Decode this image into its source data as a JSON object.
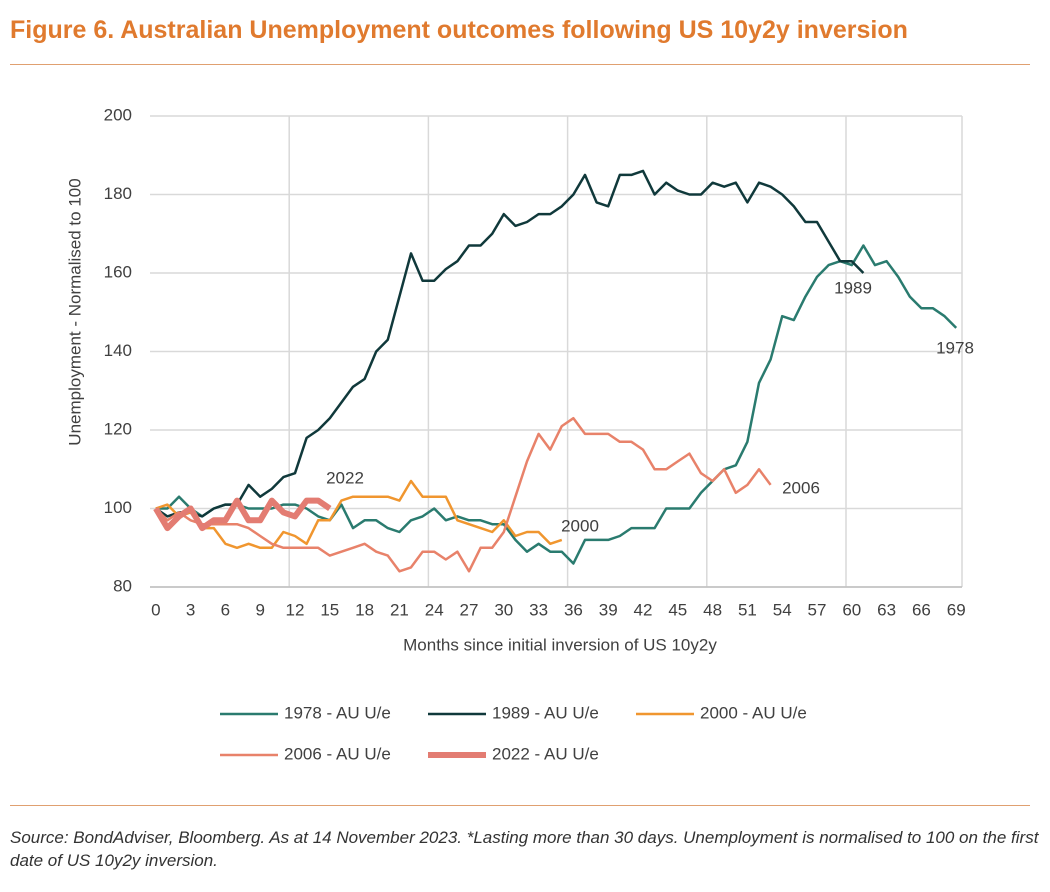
{
  "title": "Figure 6. Australian Unemployment outcomes following US 10y2y inversion",
  "source": "Source: BondAdviser, Bloomberg. As at 14 November 2023. *Lasting more than 30 days. Unemployment is normalised to 100 on the first date of US 10y2y inversion.",
  "chart_data": {
    "type": "line",
    "x_label": "Months since initial inversion of US 10y2y",
    "y_label": "Unemployment - Normalised to 100",
    "categories": [
      "0",
      null,
      null,
      "3",
      null,
      null,
      "6",
      null,
      null,
      "9",
      null,
      null,
      "12",
      null,
      null,
      "15",
      null,
      null,
      "18",
      null,
      null,
      "21",
      null,
      null,
      "24",
      null,
      null,
      "27",
      null,
      null,
      "30",
      null,
      null,
      "33",
      null,
      null,
      "36",
      null,
      null,
      "39",
      null,
      null,
      "42",
      null,
      null,
      "45",
      null,
      null,
      "48",
      null,
      null,
      "51",
      null,
      null,
      "54",
      null,
      null,
      "57",
      null,
      null,
      "60",
      null,
      null,
      "63",
      null,
      null,
      "66",
      null,
      null,
      "69"
    ],
    "ylim": [
      80,
      200
    ],
    "yticks": [
      80,
      100,
      120,
      140,
      160,
      180,
      200
    ],
    "grid": true,
    "series": [
      {
        "name": "1978 - AU U/e",
        "color": "#2a7b6f",
        "width": 2.5,
        "values": [
          100,
          100,
          103,
          100,
          98,
          100,
          101,
          101,
          100,
          100,
          100,
          101,
          101,
          100,
          98,
          97,
          101,
          95,
          97,
          97,
          95,
          94,
          97,
          98,
          100,
          97,
          98,
          97,
          97,
          96,
          96,
          92,
          89,
          91,
          89,
          89,
          86,
          92,
          92,
          92,
          93,
          95,
          95,
          95,
          100,
          100,
          100,
          104,
          107,
          110,
          111,
          117,
          132,
          138,
          149,
          148,
          154,
          159,
          162,
          163,
          162,
          167,
          162,
          163,
          159,
          154,
          151,
          151,
          149,
          146
        ]
      },
      {
        "name": "1989 - AU U/e",
        "color": "#10393b",
        "width": 2.5,
        "values": [
          100,
          98,
          99,
          99,
          98,
          100,
          101,
          101,
          106,
          103,
          105,
          108,
          109,
          118,
          120,
          123,
          127,
          131,
          133,
          140,
          143,
          154,
          165,
          158,
          158,
          161,
          163,
          167,
          167,
          170,
          175,
          172,
          173,
          175,
          175,
          177,
          180,
          185,
          178,
          177,
          185,
          185,
          186,
          180,
          183,
          181,
          180,
          180,
          183,
          182,
          183,
          178,
          183,
          182,
          180,
          177,
          173,
          173,
          168,
          163,
          163,
          160,
          null,
          null,
          null,
          null,
          null,
          null,
          null,
          null
        ]
      },
      {
        "name": "2000 - AU U/e",
        "color": "#f0962f",
        "width": 2.5,
        "values": [
          100,
          101,
          98,
          99,
          95,
          95,
          91,
          90,
          91,
          90,
          90,
          94,
          93,
          91,
          97,
          97,
          102,
          103,
          103,
          103,
          103,
          102,
          107,
          103,
          103,
          103,
          97,
          96,
          95,
          94,
          97,
          93,
          94,
          94,
          91,
          92,
          null,
          null,
          null,
          null,
          null,
          null,
          null,
          null,
          null,
          null,
          null,
          null,
          null,
          null,
          null,
          null,
          null,
          null,
          null,
          null,
          null,
          null,
          null,
          null,
          null,
          null,
          null,
          null,
          null,
          null,
          null,
          null,
          null,
          null
        ]
      },
      {
        "name": "2006 - AU U/e",
        "color": "#e8826a",
        "width": 2.5,
        "values": [
          100,
          97,
          99,
          97,
          96,
          96,
          96,
          96,
          95,
          93,
          91,
          90,
          90,
          90,
          90,
          88,
          89,
          90,
          91,
          89,
          88,
          84,
          85,
          89,
          89,
          87,
          89,
          84,
          90,
          90,
          94,
          103,
          112,
          119,
          115,
          121,
          123,
          119,
          119,
          119,
          117,
          117,
          115,
          110,
          110,
          112,
          114,
          109,
          107,
          110,
          104,
          106,
          110,
          106,
          null,
          null,
          null,
          null,
          null,
          null,
          null,
          null,
          null,
          null,
          null,
          null,
          null,
          null,
          null,
          null
        ]
      },
      {
        "name": "2022 - AU U/e",
        "color": "#e37c72",
        "width": 6,
        "values": [
          100,
          95,
          98,
          100,
          95,
          97,
          97,
          102,
          97,
          97,
          102,
          99,
          98,
          102,
          102,
          100,
          null,
          null,
          null,
          null,
          null,
          null,
          null,
          null,
          null,
          null,
          null,
          null,
          null,
          null,
          null,
          null,
          null,
          null,
          null,
          null,
          null,
          null,
          null,
          null,
          null,
          null,
          null,
          null,
          null,
          null,
          null,
          null,
          null,
          null,
          null,
          null,
          null,
          null,
          null,
          null,
          null,
          null,
          null,
          null,
          null,
          null,
          null,
          null,
          null,
          null,
          null,
          null,
          null,
          null
        ]
      }
    ],
    "annotations": [
      "2022",
      "2000",
      "2006",
      "1989",
      "1978"
    ]
  }
}
